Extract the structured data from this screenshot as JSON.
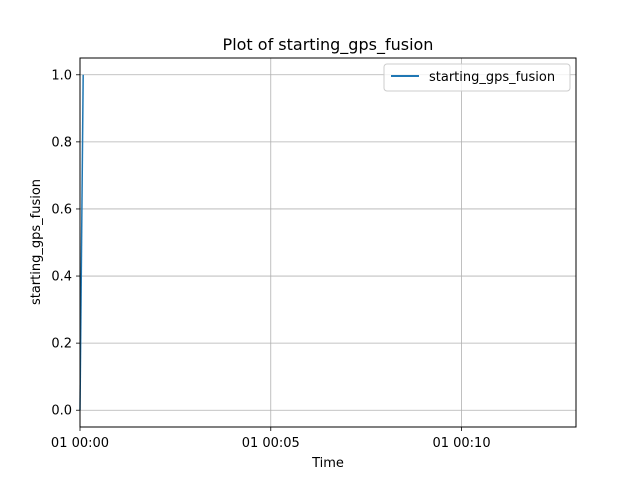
{
  "chart_data": {
    "type": "line",
    "title": "Plot of starting_gps_fusion",
    "xlabel": "Time",
    "ylabel": "starting_gps_fusion",
    "x_axis_type": "time",
    "xlim": [
      "01 00:00",
      "01 00:13"
    ],
    "ylim": [
      -0.05,
      1.05
    ],
    "x_ticks": [
      "01 00:00",
      "01 00:05",
      "01 00:10"
    ],
    "y_ticks": [
      "0.0",
      "0.2",
      "0.4",
      "0.6",
      "0.8",
      "1.0"
    ],
    "grid": true,
    "legend_position": "top-right",
    "series": [
      {
        "name": "starting_gps_fusion",
        "color": "#1f77b4",
        "x": [
          "01 00:00:00",
          "01 00:00:05"
        ],
        "y": [
          0,
          1
        ]
      }
    ]
  }
}
